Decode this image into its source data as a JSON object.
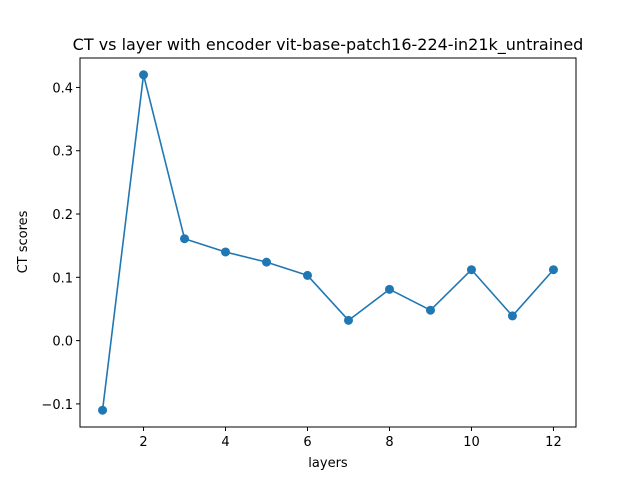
{
  "chart_data": {
    "type": "line",
    "title": "CT vs layer with encoder vit-base-patch16-224-in21k_untrained",
    "xlabel": "layers",
    "ylabel": "CT scores",
    "xlim": [
      0.45,
      12.55
    ],
    "ylim": [
      -0.1365,
      0.4465
    ],
    "xticks": [
      2,
      4,
      6,
      8,
      10,
      12
    ],
    "xtick_labels": [
      "2",
      "4",
      "6",
      "8",
      "10",
      "12"
    ],
    "yticks": [
      -0.1,
      0.0,
      0.1,
      0.2,
      0.3,
      0.4
    ],
    "ytick_labels": [
      "−0.1",
      "0.0",
      "0.1",
      "0.2",
      "0.3",
      "0.4"
    ],
    "grid": false,
    "series": [
      {
        "color": "#1f77b4",
        "marker": "circle",
        "x": [
          1,
          2,
          3,
          4,
          5,
          6,
          7,
          8,
          9,
          10,
          11,
          12
        ],
        "y": [
          -0.11,
          0.42,
          0.161,
          0.14,
          0.124,
          0.103,
          0.032,
          0.081,
          0.048,
          0.112,
          0.039,
          0.112
        ]
      }
    ]
  }
}
